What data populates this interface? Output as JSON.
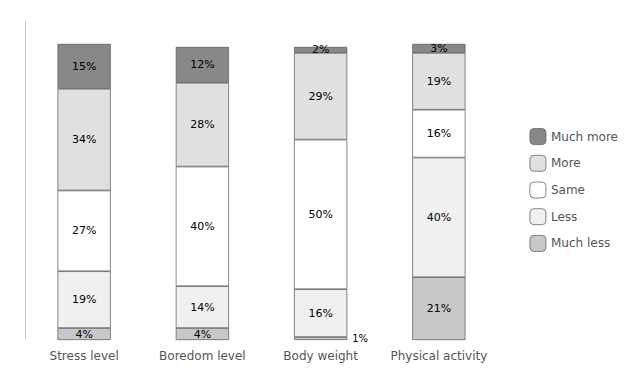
{
  "chart_data": {
    "type": "bar",
    "stacked": true,
    "categories": [
      "Stress level",
      "Boredom level",
      "Body weight",
      "Physical activity"
    ],
    "series": [
      {
        "name": "Much less",
        "color": "#c8c8c8",
        "values": [
          4,
          4,
          1,
          21
        ],
        "value_labels": [
          "4%",
          "4%",
          "1%",
          "21%"
        ]
      },
      {
        "name": "Less",
        "color": "#f0f0f0",
        "values": [
          19,
          14,
          16,
          40
        ],
        "value_labels": [
          "19%",
          "14%",
          "16%",
          "40%"
        ]
      },
      {
        "name": "Same",
        "color": "#ffffff",
        "values": [
          27,
          40,
          50,
          16
        ],
        "value_labels": [
          "27%",
          "40%",
          "50%",
          "16%"
        ]
      },
      {
        "name": "More",
        "color": "#e0e0e0",
        "values": [
          34,
          28,
          29,
          19
        ],
        "value_labels": [
          "34%",
          "28%",
          "29%",
          "19%"
        ]
      },
      {
        "name": "Much more",
        "color": "#888888",
        "values": [
          15,
          12,
          2,
          3
        ],
        "value_labels": [
          "15%",
          "12%",
          "2%",
          "3%"
        ]
      }
    ],
    "ylim": [
      0,
      107
    ],
    "tick_labels": "x",
    "grid": false,
    "legend": "right",
    "data_labels": true
  }
}
